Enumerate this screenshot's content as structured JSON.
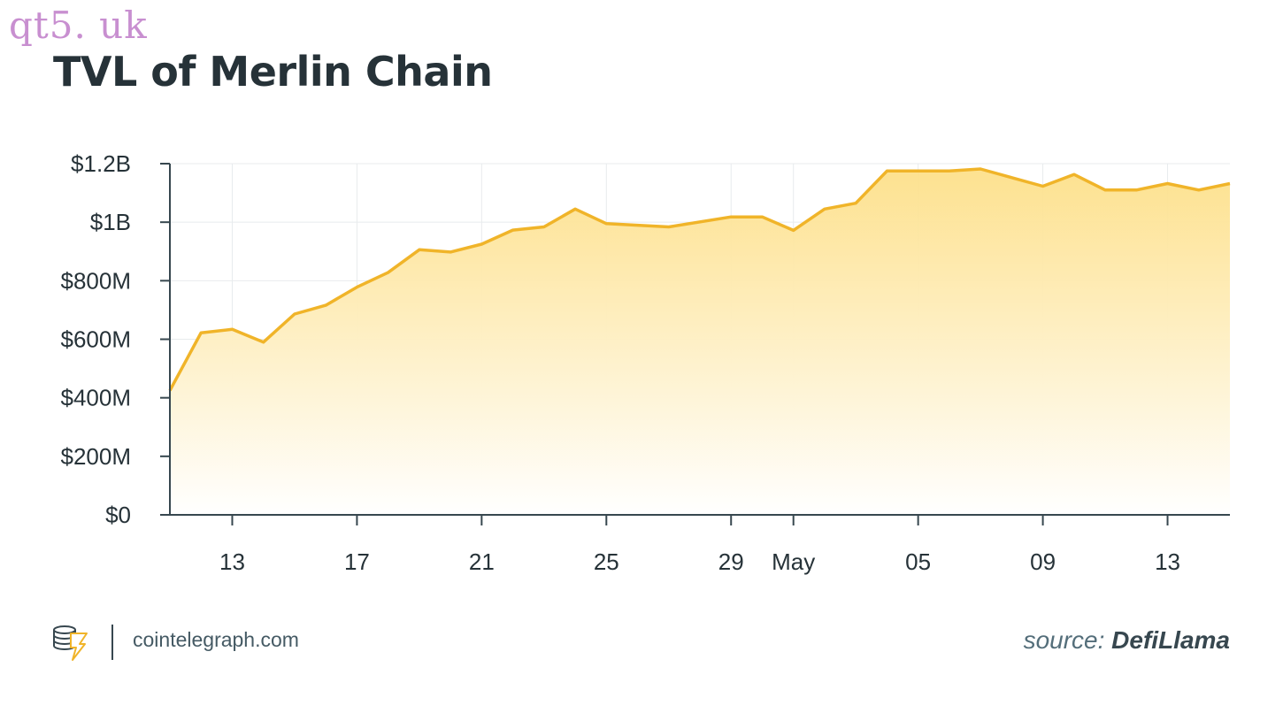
{
  "watermark": "qt5. uk",
  "footer": {
    "site": "cointelegraph.com",
    "source_prefix": "source:",
    "source_name": "DefiLlama"
  },
  "colors": {
    "line": "#f0b429",
    "fill_top": "#fde08a",
    "fill_bottom": "#ffffff",
    "axis": "#37474f",
    "grid": "#e8ebed",
    "text": "#263238"
  },
  "chart_data": {
    "type": "area",
    "title": "TVL of Merlin Chain",
    "xlabel": "",
    "ylabel": "",
    "ylim": [
      0,
      1200000000
    ],
    "grid": true,
    "yticks": [
      {
        "value": 0,
        "label": "$0"
      },
      {
        "value": 200000000,
        "label": "$200M"
      },
      {
        "value": 400000000,
        "label": "$400M"
      },
      {
        "value": 600000000,
        "label": "$600M"
      },
      {
        "value": 800000000,
        "label": "$800M"
      },
      {
        "value": 1000000000,
        "label": "$1B"
      },
      {
        "value": 1200000000,
        "label": "$1.2B"
      }
    ],
    "xticks": [
      {
        "x": "2024-04-13",
        "label": "13"
      },
      {
        "x": "2024-04-17",
        "label": "17"
      },
      {
        "x": "2024-04-21",
        "label": "21"
      },
      {
        "x": "2024-04-25",
        "label": "25"
      },
      {
        "x": "2024-04-29",
        "label": "29"
      },
      {
        "x": "2024-05-01",
        "label": "May"
      },
      {
        "x": "2024-05-05",
        "label": "05"
      },
      {
        "x": "2024-05-09",
        "label": "09"
      },
      {
        "x": "2024-05-13",
        "label": "13"
      }
    ],
    "xlim": [
      "2024-04-11",
      "2024-05-15"
    ],
    "series": [
      {
        "points": [
          {
            "x": "2024-04-11",
            "y": 425000000
          },
          {
            "x": "2024-04-12",
            "y": 622000000
          },
          {
            "x": "2024-04-13",
            "y": 634000000
          },
          {
            "x": "2024-04-14",
            "y": 590000000
          },
          {
            "x": "2024-04-15",
            "y": 686000000
          },
          {
            "x": "2024-04-16",
            "y": 716000000
          },
          {
            "x": "2024-04-17",
            "y": 778000000
          },
          {
            "x": "2024-04-18",
            "y": 828000000
          },
          {
            "x": "2024-04-19",
            "y": 906000000
          },
          {
            "x": "2024-04-20",
            "y": 898000000
          },
          {
            "x": "2024-04-21",
            "y": 925000000
          },
          {
            "x": "2024-04-22",
            "y": 973000000
          },
          {
            "x": "2024-04-23",
            "y": 984000000
          },
          {
            "x": "2024-04-24",
            "y": 1045000000
          },
          {
            "x": "2024-04-25",
            "y": 995000000
          },
          {
            "x": "2024-04-27",
            "y": 984000000
          },
          {
            "x": "2024-04-29",
            "y": 1018000000
          },
          {
            "x": "2024-04-30",
            "y": 1018000000
          },
          {
            "x": "2024-05-01",
            "y": 972000000
          },
          {
            "x": "2024-05-02",
            "y": 1045000000
          },
          {
            "x": "2024-05-03",
            "y": 1065000000
          },
          {
            "x": "2024-05-04",
            "y": 1175000000
          },
          {
            "x": "2024-05-06",
            "y": 1175000000
          },
          {
            "x": "2024-05-07",
            "y": 1182000000
          },
          {
            "x": "2024-05-09",
            "y": 1123000000
          },
          {
            "x": "2024-05-10",
            "y": 1163000000
          },
          {
            "x": "2024-05-11",
            "y": 1110000000
          },
          {
            "x": "2024-05-12",
            "y": 1110000000
          },
          {
            "x": "2024-05-13",
            "y": 1132000000
          },
          {
            "x": "2024-05-14",
            "y": 1110000000
          },
          {
            "x": "2024-05-15",
            "y": 1132000000
          }
        ]
      }
    ]
  }
}
